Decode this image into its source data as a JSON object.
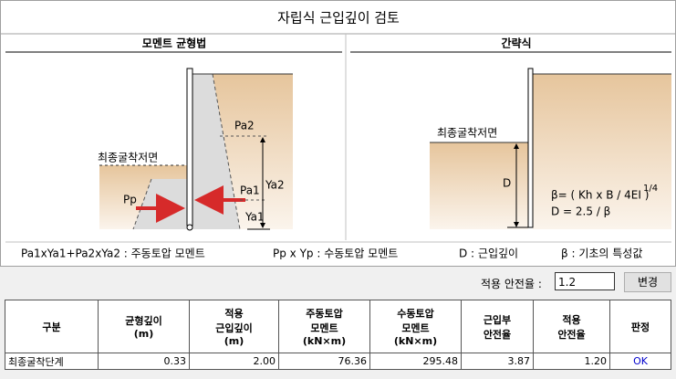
{
  "title": "자립식 근입깊이 검토",
  "left_panel": {
    "title": "모멘트 균형법",
    "excavation_label": "최종굴착저면",
    "pa2": "Pa2",
    "ya2": "Ya2",
    "pa1": "Pa1",
    "ya1": "Ya1",
    "pp": "Pp"
  },
  "right_panel": {
    "title": "간략식",
    "excavation_label": "최종굴착저면",
    "d": "D",
    "formula_beta": "β= ( Kh x B / 4EI )",
    "formula_exp": "1/4",
    "formula_d": "D = 2.5 / β"
  },
  "legend": [
    "Pa1xYa1+Pa2xYa2 : 주동토압 모멘트",
    "Pp x Yp  : 수동토압 모멘트",
    "D : 근입깊이",
    "β : 기초의 특성값"
  ],
  "safety": {
    "label": "적용 안전율 :",
    "value": "1.2",
    "button": "변경"
  },
  "table": {
    "headers": [
      "구분",
      "균형깊이\n(m)",
      "적용\n근입깊이\n(m)",
      "주동토압\n모멘트\n(kN×m)",
      "수동토압\n모멘트\n(kN×m)",
      "근입부\n안전율",
      "적용\n안전율",
      "판정"
    ],
    "rows": [
      [
        "최종굴착단계",
        "0.33",
        "2.00",
        "76.36",
        "295.48",
        "3.87",
        "1.20",
        "OK"
      ]
    ]
  }
}
